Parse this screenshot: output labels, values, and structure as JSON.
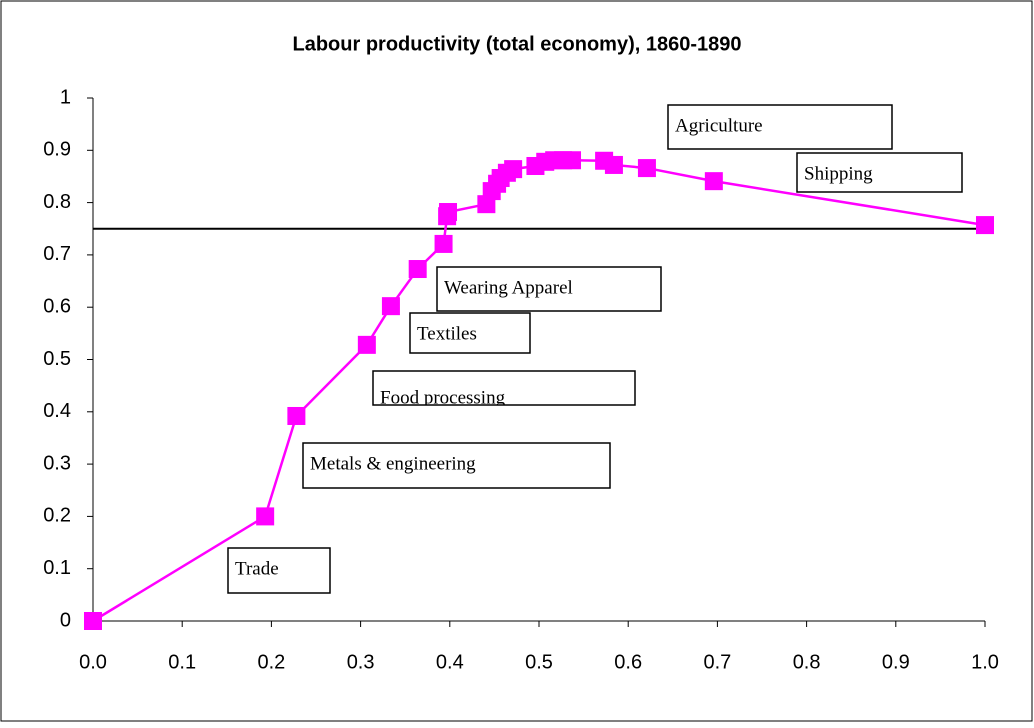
{
  "chart_data": {
    "type": "line",
    "title": "Labour productivity (total economy), 1860-1890",
    "series": [
      {
        "color": "#ff00ff",
        "x": [
          0,
          0.193,
          0.228,
          0.307,
          0.334,
          0.364,
          0.393,
          0.397,
          0.398,
          0.441,
          0.447,
          0.453,
          0.457,
          0.464,
          0.471,
          0.496,
          0.507,
          0.517,
          0.527,
          0.537,
          0.573,
          0.584,
          0.621,
          0.696,
          1.0
        ],
        "values": [
          0,
          0.2,
          0.392,
          0.528,
          0.602,
          0.673,
          0.721,
          0.774,
          0.782,
          0.797,
          0.822,
          0.836,
          0.847,
          0.857,
          0.864,
          0.87,
          0.878,
          0.881,
          0.881,
          0.881,
          0.88,
          0.872,
          0.866,
          0.841,
          0.757
        ]
      }
    ],
    "reference_line": {
      "value": 0.75,
      "color": "#000000"
    },
    "annotations": [
      "Trade",
      "Metals & engineering",
      "Food processing",
      "Textiles",
      "Wearing Apparel",
      "Agriculture",
      "Shipping"
    ],
    "xlim": [
      0,
      1
    ],
    "xticks": [
      {
        "value": 0,
        "label": "0.0"
      },
      0.1,
      0.2,
      0.3,
      0.4,
      0.5,
      0.6,
      0.7,
      0.8,
      0.9,
      {
        "value": 1,
        "label": "1.0"
      }
    ],
    "ylim": [
      0,
      1
    ],
    "yticks": [
      0,
      0.1,
      0.2,
      0.3,
      0.4,
      0.5,
      0.6,
      0.7,
      0.8,
      0.9,
      1
    ],
    "grid": false
  }
}
